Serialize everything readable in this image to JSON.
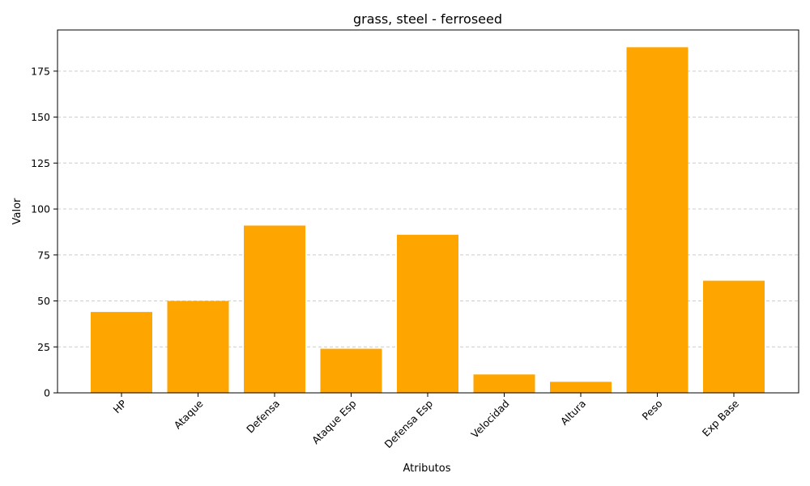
{
  "chart_data": {
    "type": "bar",
    "title": "grass, steel - ferroseed",
    "xlabel": "Atributos",
    "ylabel": "Valor",
    "categories": [
      "HP",
      "Ataque",
      "Defensa",
      "Ataque Esp",
      "Defensa Esp",
      "Velocidad",
      "Altura",
      "Peso",
      "Exp Base"
    ],
    "values": [
      44,
      50,
      91,
      24,
      86,
      10,
      6,
      188,
      61
    ],
    "yticks": [
      0,
      25,
      50,
      75,
      100,
      125,
      150,
      175
    ],
    "ylim": [
      0,
      197.4
    ],
    "grid": "y-dashed",
    "bar_color": "#FFA500",
    "grid_color": "#cccccc"
  }
}
